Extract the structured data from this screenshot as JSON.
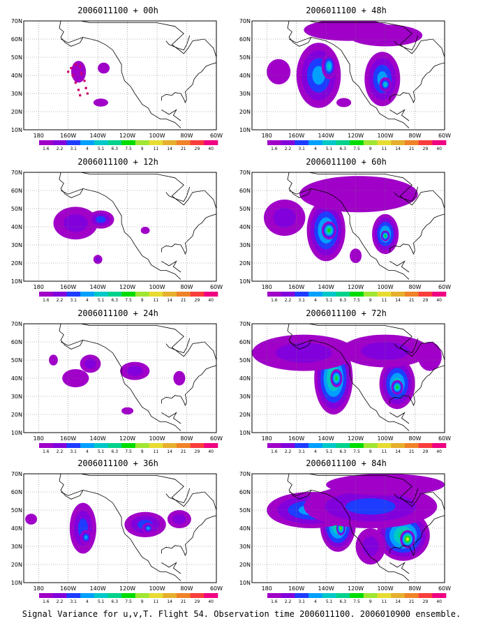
{
  "panels": [
    {
      "title": "2006011100 + 00h"
    },
    {
      "title": "2006011100 + 48h"
    },
    {
      "title": "2006011100 + 12h"
    },
    {
      "title": "2006011100 + 60h"
    },
    {
      "title": "2006011100 + 24h"
    },
    {
      "title": "2006011100 + 72h"
    },
    {
      "title": "2006011100 + 36h"
    },
    {
      "title": "2006011100 + 84h"
    }
  ],
  "map": {
    "lon_labels": [
      "180",
      "160W",
      "140W",
      "120W",
      "100W",
      "80W",
      "60W"
    ],
    "lat_labels": [
      "10N",
      "20N",
      "30N",
      "40N",
      "50N",
      "60N",
      "70N"
    ],
    "lon_range": [
      -190,
      -60
    ],
    "lat_range": [
      10,
      70
    ],
    "land_outline_color": "#000000",
    "grid": "dotted"
  },
  "colorbar": {
    "labels": [
      "1.6",
      "2.2",
      "3.1",
      "4",
      "5.1",
      "6.3",
      "7.5",
      "9",
      "11",
      "14",
      "21",
      "29",
      "40"
    ],
    "colors": [
      "#a000c8",
      "#8200dc",
      "#1e3cff",
      "#00a0ff",
      "#00c8c8",
      "#00d28c",
      "#00dc00",
      "#a0e632",
      "#e6dc32",
      "#e6af2d",
      "#f08228",
      "#fa3c3c",
      "#f00082"
    ]
  },
  "caption": "Signal Variance for u,v,T. Flight 54. Observation time 2006011100. 2006010900 ensemble."
}
